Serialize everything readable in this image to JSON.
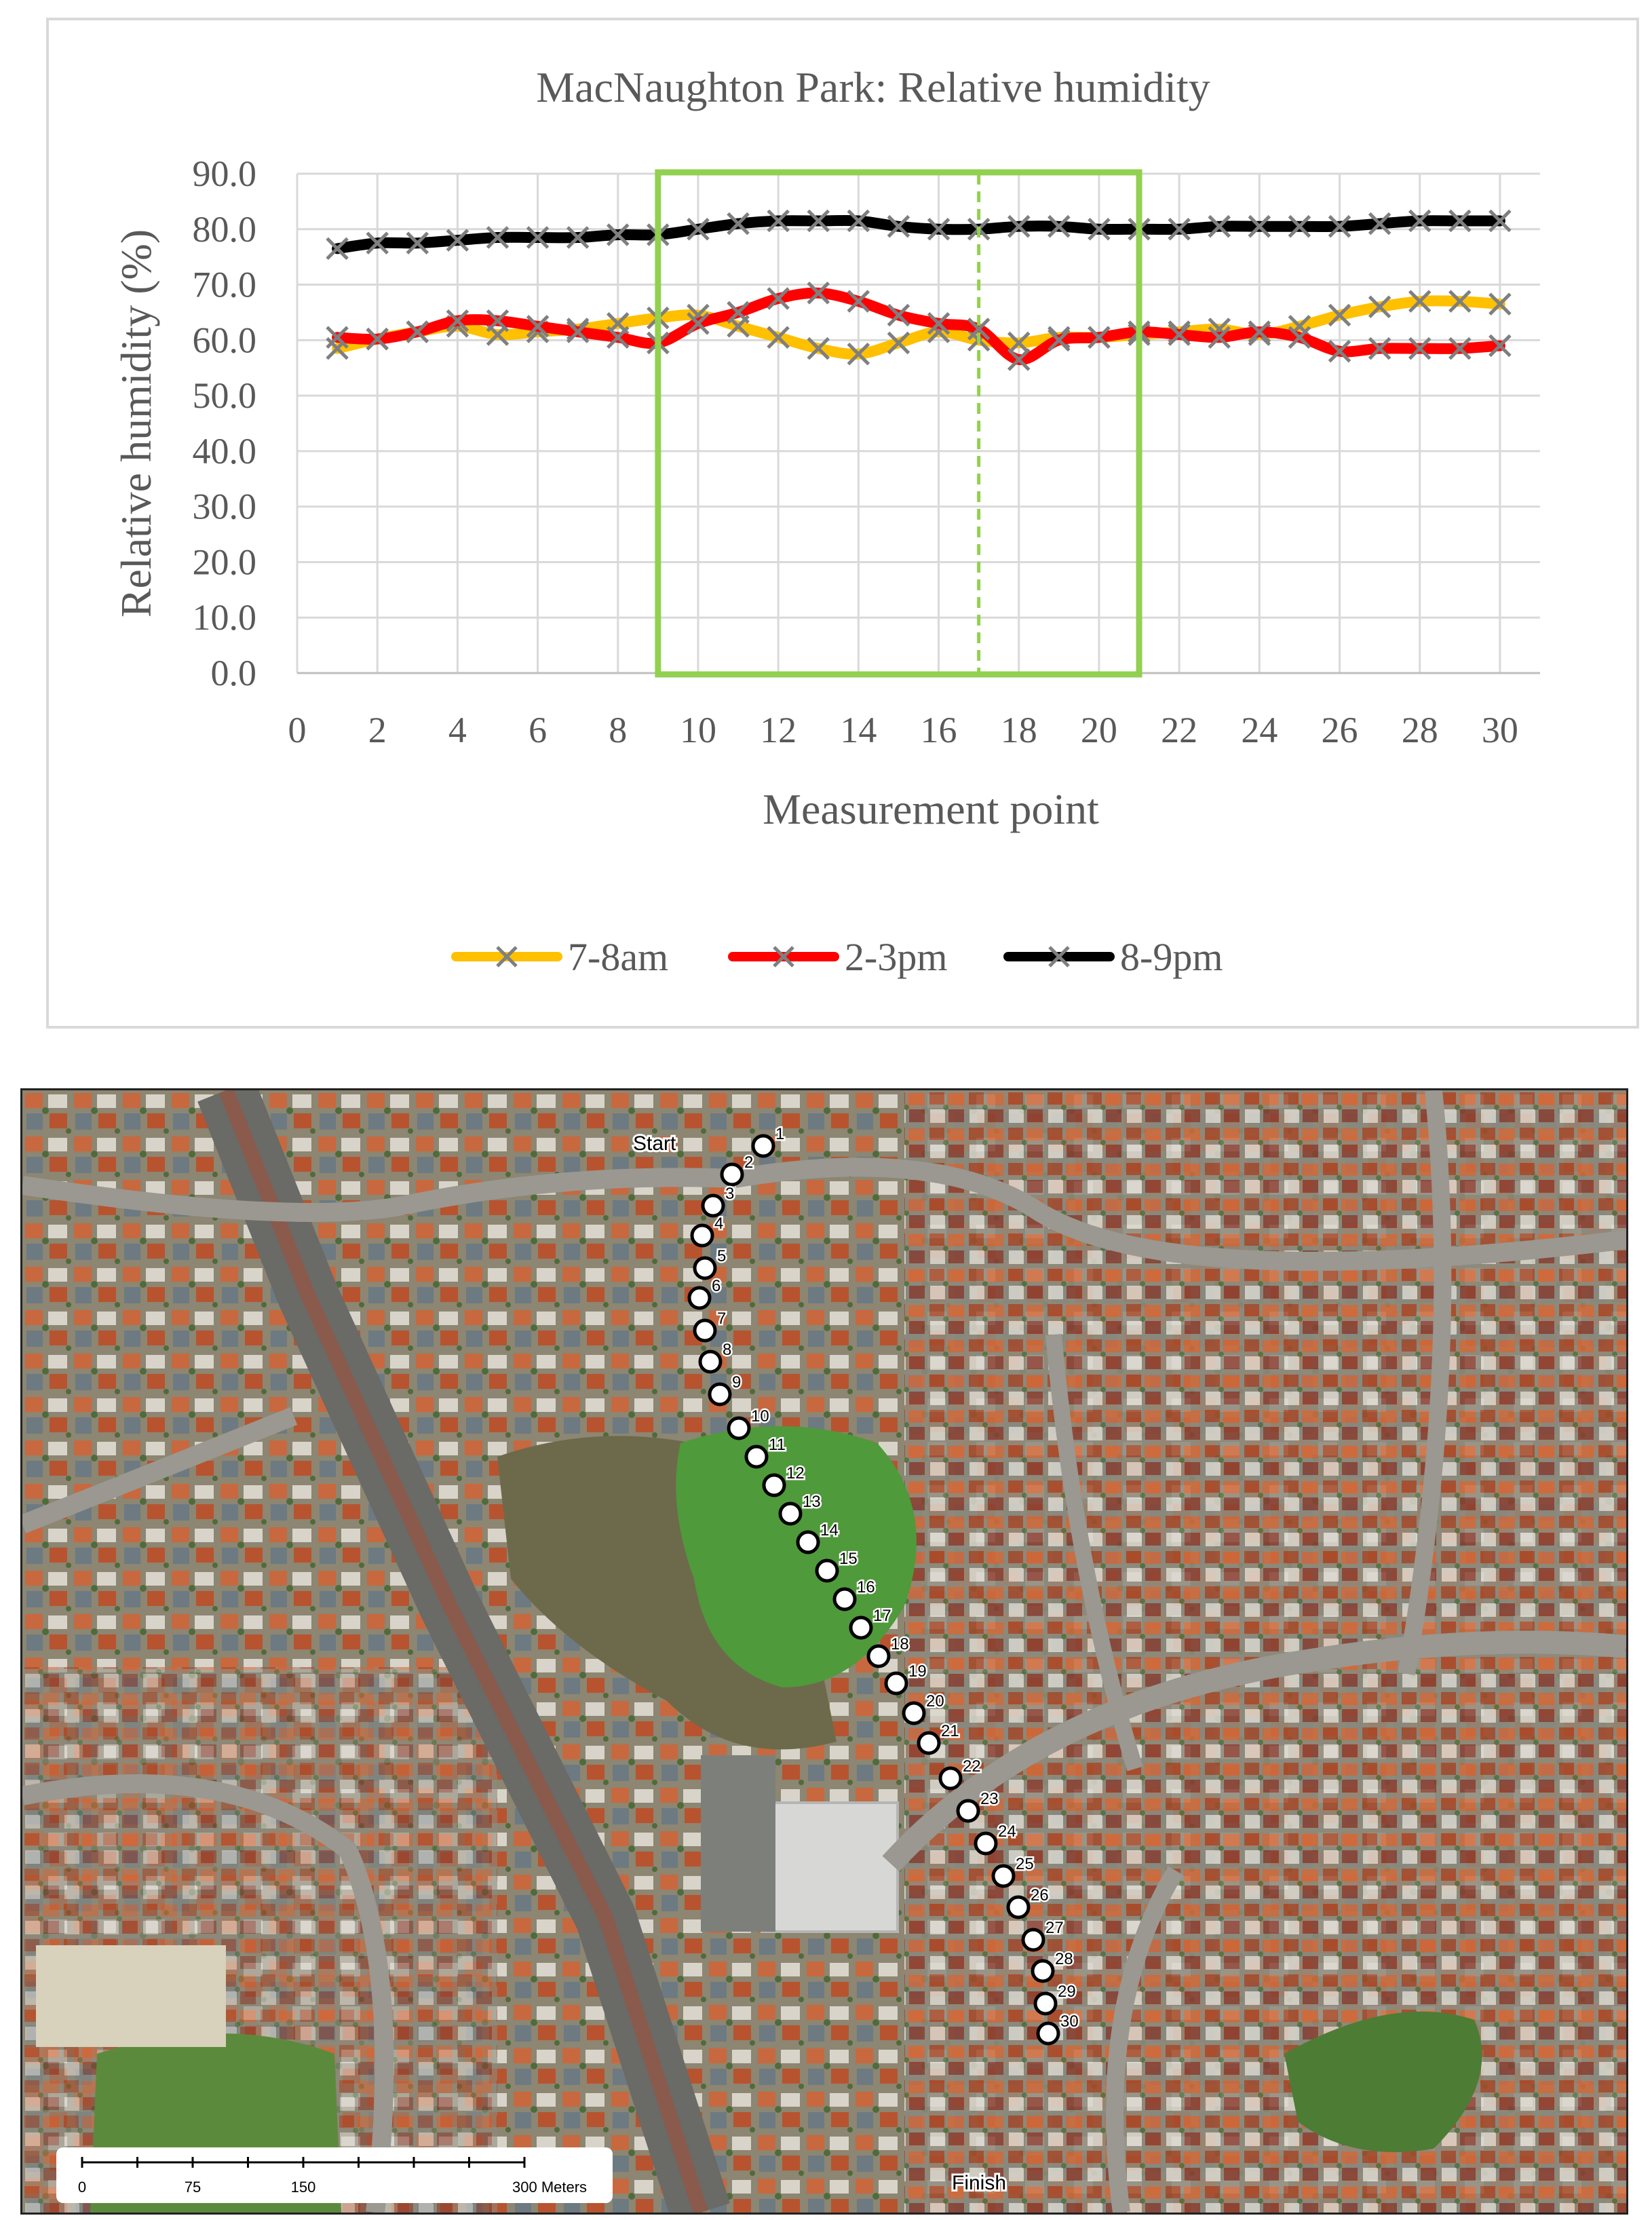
{
  "chart_data": {
    "type": "line",
    "title": "MacNaughton Park: Relative humidity",
    "xlabel": "Measurement point",
    "ylabel": "Relative humidity (%)",
    "xlim": [
      0,
      31
    ],
    "ylim": [
      0,
      90
    ],
    "x_ticks": [
      "0",
      "2",
      "4",
      "6",
      "8",
      "10",
      "12",
      "14",
      "16",
      "18",
      "20",
      "22",
      "24",
      "26",
      "28",
      "30"
    ],
    "y_ticks": [
      "0.0",
      "10.0",
      "20.0",
      "30.0",
      "40.0",
      "50.0",
      "60.0",
      "70.0",
      "80.0",
      "90.0"
    ],
    "grid": true,
    "legend_position": "bottom",
    "x": [
      1,
      2,
      3,
      4,
      5,
      6,
      7,
      8,
      9,
      10,
      11,
      12,
      13,
      14,
      15,
      16,
      17,
      18,
      19,
      20,
      21,
      22,
      23,
      24,
      25,
      26,
      27,
      28,
      29,
      30
    ],
    "series": [
      {
        "name": "7-8am",
        "color": "#FFC000",
        "values": [
          58.5,
          60.2,
          61.5,
          62.5,
          61.0,
          61.5,
          62.0,
          63.0,
          64.0,
          64.5,
          62.5,
          60.5,
          58.5,
          57.5,
          59.5,
          61.5,
          60.0,
          59.5,
          60.5,
          60.5,
          61.0,
          61.5,
          62.0,
          61.0,
          62.5,
          64.5,
          66.0,
          67.0,
          67.0,
          66.5
        ]
      },
      {
        "name": "2-3pm",
        "color": "#FF0000",
        "values": [
          60.5,
          60.2,
          61.5,
          63.5,
          63.5,
          62.5,
          61.5,
          60.5,
          59.5,
          63.0,
          65.0,
          67.5,
          68.5,
          67.0,
          64.5,
          63.0,
          62.0,
          56.5,
          60.0,
          60.5,
          61.5,
          61.0,
          60.5,
          61.5,
          60.5,
          58.0,
          58.5,
          58.5,
          58.5,
          59.0
        ]
      },
      {
        "name": "8-9pm",
        "color": "#000000",
        "values": [
          76.5,
          77.5,
          77.5,
          78.0,
          78.5,
          78.5,
          78.5,
          79.0,
          79.0,
          80.0,
          81.0,
          81.5,
          81.5,
          81.5,
          80.5,
          80.0,
          80.0,
          80.5,
          80.5,
          80.0,
          80.0,
          80.0,
          80.5,
          80.5,
          80.5,
          80.5,
          81.0,
          81.5,
          81.5,
          81.5
        ]
      }
    ],
    "highlight_region": {
      "x": [
        9,
        21
      ],
      "y": [
        0,
        90
      ],
      "color": "#92D050"
    },
    "highlight_divider_x": 17
  },
  "map": {
    "labels": {
      "start": "Start",
      "finish": "Finish"
    },
    "points": [
      "1",
      "2",
      "3",
      "4",
      "5",
      "6",
      "7",
      "8",
      "9",
      "10",
      "11",
      "12",
      "13",
      "14",
      "15",
      "16",
      "17",
      "18",
      "19",
      "20",
      "21",
      "22",
      "23",
      "24",
      "25",
      "26",
      "27",
      "28",
      "29",
      "30"
    ],
    "scale_bar": {
      "ticks": [
        "0",
        "75",
        "150",
        "300 Meters"
      ],
      "values": [
        0,
        75,
        150,
        300
      ]
    }
  }
}
